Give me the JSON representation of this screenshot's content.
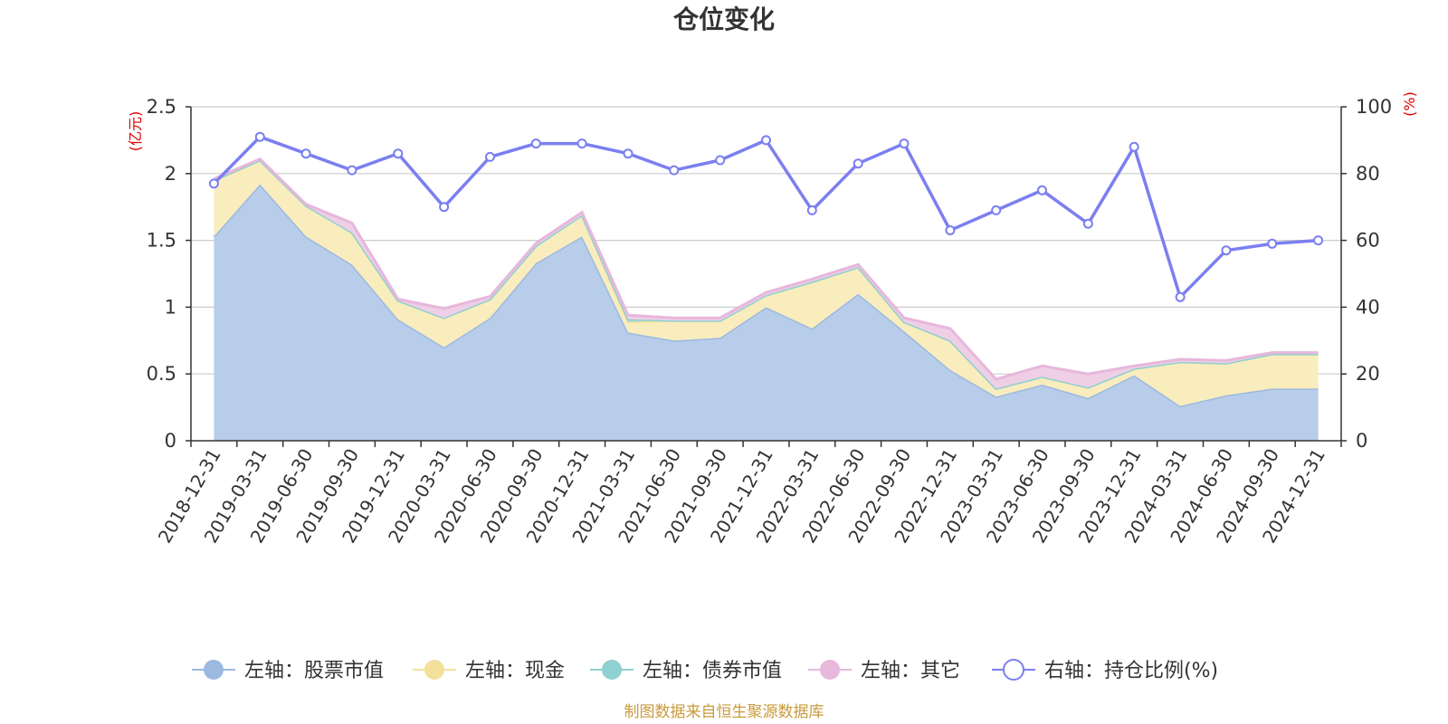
{
  "chart_data": {
    "type": "area",
    "title": "仓位变化",
    "left_axis_unit": "(亿元)",
    "right_axis_unit": "(%)",
    "categories": [
      "2018-12-31",
      "2019-03-31",
      "2019-06-30",
      "2019-09-30",
      "2019-12-31",
      "2020-03-31",
      "2020-06-30",
      "2020-09-30",
      "2020-12-31",
      "2021-03-31",
      "2021-06-30",
      "2021-09-30",
      "2021-12-31",
      "2022-03-31",
      "2022-06-30",
      "2022-09-30",
      "2022-12-31",
      "2023-03-31",
      "2023-06-30",
      "2023-09-30",
      "2023-12-31",
      "2024-03-31",
      "2024-06-30",
      "2024-09-30",
      "2024-12-31"
    ],
    "y_left": {
      "ylim": [
        0,
        2.5
      ],
      "ticks": [
        "0",
        "0.5",
        "1",
        "1.5",
        "2",
        "2.5"
      ]
    },
    "y_right": {
      "ylim": [
        0,
        100
      ],
      "ticks": [
        "0",
        "20",
        "40",
        "60",
        "80",
        "100"
      ]
    },
    "grid": true,
    "legend_position": "bottom",
    "series": [
      {
        "name": "左轴：股票市值",
        "axis": "left",
        "type": "stacked-area",
        "color": "#9cb9e0",
        "fill": "#b8cdea",
        "values": [
          1.53,
          1.92,
          1.53,
          1.32,
          0.91,
          0.7,
          0.92,
          1.33,
          1.53,
          0.81,
          0.75,
          0.77,
          1.0,
          0.84,
          1.1,
          0.82,
          0.53,
          0.33,
          0.42,
          0.32,
          0.49,
          0.26,
          0.34,
          0.39,
          0.39
        ]
      },
      {
        "name": "左轴：现金",
        "axis": "left",
        "type": "stacked-area",
        "color": "#f3e09a",
        "fill": "#f9edbd",
        "values": [
          0.42,
          0.18,
          0.23,
          0.24,
          0.14,
          0.22,
          0.14,
          0.13,
          0.16,
          0.08,
          0.15,
          0.13,
          0.09,
          0.35,
          0.2,
          0.07,
          0.22,
          0.06,
          0.06,
          0.08,
          0.05,
          0.33,
          0.24,
          0.26,
          0.26
        ]
      },
      {
        "name": "左轴：债券市值",
        "axis": "left",
        "type": "stacked-area",
        "color": "#8fd0d0",
        "fill": "#a9dcdc",
        "values": [
          0,
          0,
          0,
          0,
          0,
          0,
          0,
          0,
          0,
          0.02,
          0,
          0,
          0,
          0,
          0,
          0,
          0,
          0,
          0,
          0,
          0,
          0,
          0,
          0,
          0
        ]
      },
      {
        "name": "左轴：其它",
        "axis": "left",
        "type": "stacked-area",
        "color": "#e7b7dc",
        "fill": "#efcfe6",
        "values": [
          0.01,
          0.01,
          0.01,
          0.07,
          0.01,
          0.07,
          0.02,
          0.02,
          0.02,
          0.03,
          0.02,
          0.02,
          0.02,
          0.02,
          0.02,
          0.03,
          0.09,
          0.07,
          0.08,
          0.1,
          0.02,
          0.02,
          0.02,
          0.01,
          0.01
        ]
      },
      {
        "name": "右轴：持仓比例(%)",
        "axis": "right",
        "type": "line",
        "color": "#7b7ff0",
        "values": [
          77,
          91,
          86,
          81,
          86,
          70,
          85,
          89,
          89,
          86,
          81,
          84,
          90,
          69,
          83,
          89,
          63,
          69,
          75,
          65,
          88,
          43,
          57,
          59,
          60
        ]
      }
    ]
  },
  "footer": {
    "source": "制图数据来自恒生聚源数据库"
  }
}
